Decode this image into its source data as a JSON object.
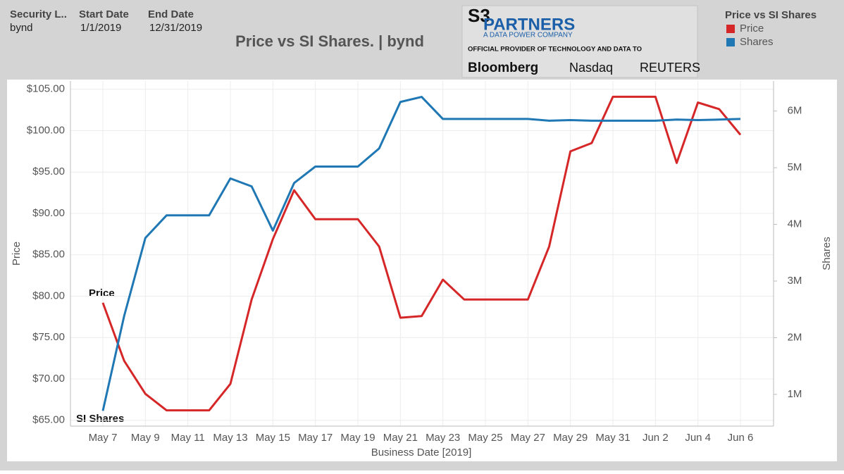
{
  "filters": [
    {
      "label": "Security L..",
      "value": "bynd"
    },
    {
      "label": "Start Date",
      "value": "1/1/2019"
    },
    {
      "label": "End Date",
      "value": "12/31/2019"
    }
  ],
  "logo": {
    "mark": "S3",
    "name": "PARTNERS",
    "tagline": "A DATA POWER COMPANY",
    "provider": "OFFICIAL PROVIDER OF TECHNOLOGY AND DATA TO",
    "brands": [
      "Bloomberg",
      "Nasdaq",
      "REUTERS"
    ]
  },
  "chart_data": {
    "type": "line",
    "title": "Price vs SI Shares. | bynd",
    "legend_title": "Price vs SI Shares",
    "x_label": "Business Date [2019]",
    "y_label": "Price",
    "y2_label": "Shares",
    "annotations": [
      "Price",
      "SI Shares"
    ],
    "categories": [
      "May 7",
      null,
      "May 9",
      null,
      "May 11",
      null,
      "May 13",
      null,
      "May 15",
      null,
      "May 17",
      null,
      "May 19",
      null,
      "May 21",
      null,
      "May 23",
      null,
      "May 25",
      null,
      "May 27",
      null,
      "May 29",
      null,
      "May 31",
      null,
      "Jun 2",
      null,
      "Jun 4",
      null,
      "Jun 6"
    ],
    "series": [
      {
        "name": "Price",
        "color": "#d62728",
        "values": [
          79.2,
          72.2,
          68.2,
          66.2,
          66.2,
          66.2,
          69.4,
          79.6,
          86.9,
          92.8,
          89.3,
          89.3,
          89.3,
          86.0,
          77.4,
          77.6,
          82.0,
          79.6,
          79.6,
          79.6,
          79.6,
          86.0,
          97.5,
          98.5,
          104.1,
          104.1,
          104.1,
          96.1,
          103.4,
          102.6,
          99.5
        ]
      },
      {
        "name": "Shares",
        "color": "#1f77b4",
        "axis": "y2",
        "values": [
          710000,
          2380000,
          3760000,
          4160000,
          4160000,
          4160000,
          4810000,
          4670000,
          3890000,
          4730000,
          5020000,
          5020000,
          5020000,
          5340000,
          6160000,
          6250000,
          5860000,
          5860000,
          5860000,
          5860000,
          5860000,
          5830000,
          5840000,
          5830000,
          5830000,
          5830000,
          5830000,
          5850000,
          5840000,
          5850000,
          5860000
        ]
      }
    ],
    "ylim": [
      64.3,
      106
    ],
    "yticks": [
      {
        "value": 65,
        "label": "$65.00"
      },
      {
        "value": 70,
        "label": "$70.00"
      },
      {
        "value": 75,
        "label": "$75.00"
      },
      {
        "value": 80,
        "label": "$80.00"
      },
      {
        "value": 85,
        "label": "$85.00"
      },
      {
        "value": 90,
        "label": "$90.00"
      },
      {
        "value": 95,
        "label": "$95.00"
      },
      {
        "value": 100,
        "label": "$100.00"
      },
      {
        "value": 105,
        "label": "$105.00"
      }
    ],
    "y2lim": [
      440000,
      6530000
    ],
    "y2ticks": [
      {
        "value": 1000000,
        "label": "1M"
      },
      {
        "value": 2000000,
        "label": "2M"
      },
      {
        "value": 3000000,
        "label": "3M"
      },
      {
        "value": 4000000,
        "label": "4M"
      },
      {
        "value": 5000000,
        "label": "5M"
      },
      {
        "value": 6000000,
        "label": "6M"
      }
    ],
    "grid": true
  }
}
